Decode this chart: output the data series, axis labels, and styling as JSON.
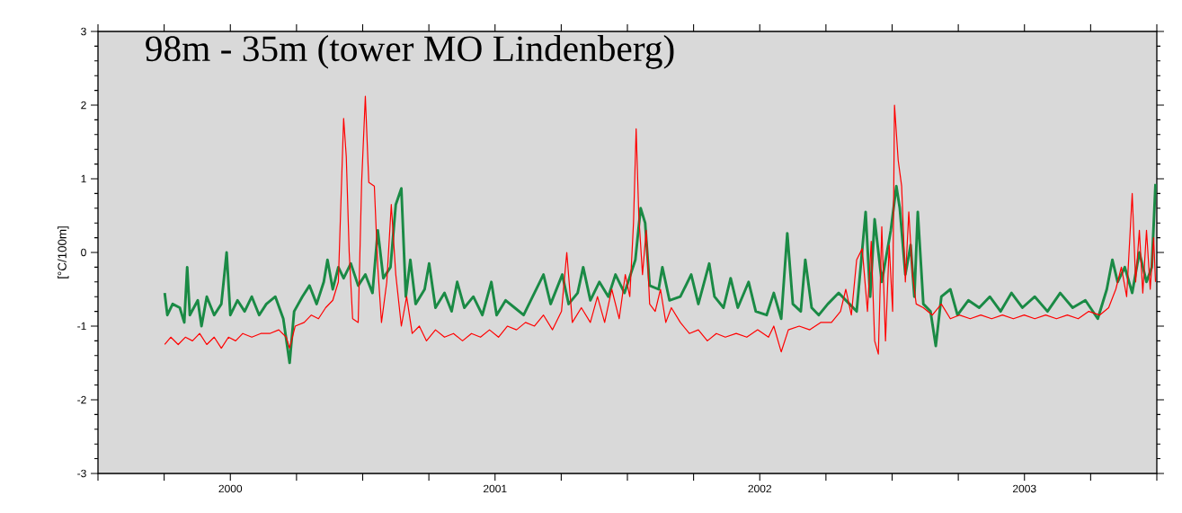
{
  "chart_data": {
    "type": "line",
    "title": "98m - 35m (tower MO Lindenberg)",
    "ylabel": "[°C/100m]",
    "xlim": [
      2000,
      2004
    ],
    "ylim": [
      -3,
      3
    ],
    "xticks": [
      {
        "value": 2000,
        "label": null
      },
      {
        "value": 2000.25,
        "label": null
      },
      {
        "value": 2000.5,
        "label": "2000"
      },
      {
        "value": 2000.75,
        "label": null
      },
      {
        "value": 2001,
        "label": null
      },
      {
        "value": 2001.25,
        "label": null
      },
      {
        "value": 2001.5,
        "label": "2001"
      },
      {
        "value": 2001.75,
        "label": null
      },
      {
        "value": 2002,
        "label": null
      },
      {
        "value": 2002.25,
        "label": null
      },
      {
        "value": 2002.5,
        "label": "2002"
      },
      {
        "value": 2002.75,
        "label": null
      },
      {
        "value": 2003,
        "label": null
      },
      {
        "value": 2003.25,
        "label": null
      },
      {
        "value": 2003.5,
        "label": "2003"
      },
      {
        "value": 2003.75,
        "label": null
      },
      {
        "value": 2004,
        "label": null
      }
    ],
    "yticks": [
      -3,
      -2,
      -1,
      0,
      1,
      2,
      3
    ],
    "line_style": "solid",
    "series": [
      {
        "color": "#1a8a45",
        "x": [
          2000.252,
          2000.262,
          2000.282,
          2000.309,
          2000.326,
          2000.337,
          2000.347,
          2000.377,
          2000.391,
          2000.411,
          2000.439,
          2000.466,
          2000.486,
          2000.5,
          2000.527,
          2000.554,
          2000.581,
          2000.609,
          2000.636,
          2000.67,
          2000.7,
          2000.724,
          2000.741,
          2000.772,
          2000.799,
          2000.826,
          2000.853,
          2000.867,
          2000.887,
          2000.908,
          2000.928,
          2000.955,
          2000.983,
          2001.01,
          2001.037,
          2001.057,
          2001.078,
          2001.105,
          2001.125,
          2001.146,
          2001.163,
          2001.18,
          2001.2,
          2001.234,
          2001.251,
          2001.275,
          2001.309,
          2001.336,
          2001.357,
          2001.384,
          2001.418,
          2001.452,
          2001.486,
          2001.506,
          2001.54,
          2001.574,
          2001.608,
          2001.642,
          2001.683,
          2001.71,
          2001.754,
          2001.778,
          2001.812,
          2001.833,
          2001.86,
          2001.894,
          2001.928,
          2001.955,
          2001.989,
          2002.03,
          2002.05,
          2002.067,
          2002.084,
          2002.118,
          2002.132,
          2002.159,
          2002.2,
          2002.241,
          2002.268,
          2002.309,
          2002.329,
          2002.363,
          2002.39,
          2002.417,
          2002.458,
          2002.485,
          2002.526,
          2002.553,
          2002.581,
          2002.604,
          2002.625,
          2002.655,
          2002.672,
          2002.696,
          2002.723,
          2002.757,
          2002.798,
          2002.839,
          2002.866,
          2002.9,
          2002.917,
          2002.934,
          2002.961,
          2002.995,
          2003.016,
          2003.029,
          2003.05,
          2003.07,
          2003.084,
          2003.097,
          2003.118,
          2003.145,
          2003.165,
          2003.186,
          2003.22,
          2003.247,
          2003.288,
          2003.329,
          2003.369,
          2003.41,
          2003.451,
          2003.492,
          2003.539,
          2003.587,
          2003.635,
          2003.682,
          2003.73,
          2003.777,
          2003.811,
          2003.832,
          2003.852,
          2003.879,
          2003.907,
          2003.934,
          2003.961,
          2003.981,
          2003.995
        ],
        "values": [
          -0.55,
          -0.85,
          -0.7,
          -0.75,
          -0.95,
          -0.2,
          -0.85,
          -0.65,
          -1.0,
          -0.6,
          -0.85,
          -0.7,
          0.0,
          -0.85,
          -0.65,
          -0.8,
          -0.6,
          -0.85,
          -0.7,
          -0.6,
          -0.9,
          -1.5,
          -0.8,
          -0.6,
          -0.45,
          -0.7,
          -0.4,
          -0.1,
          -0.5,
          -0.2,
          -0.35,
          -0.15,
          -0.45,
          -0.3,
          -0.55,
          0.3,
          -0.35,
          -0.2,
          0.65,
          0.87,
          -0.6,
          -0.1,
          -0.7,
          -0.5,
          -0.15,
          -0.75,
          -0.55,
          -0.8,
          -0.4,
          -0.75,
          -0.6,
          -0.85,
          -0.4,
          -0.85,
          -0.65,
          -0.75,
          -0.85,
          -0.6,
          -0.3,
          -0.7,
          -0.3,
          -0.7,
          -0.55,
          -0.2,
          -0.65,
          -0.4,
          -0.6,
          -0.3,
          -0.55,
          -0.1,
          0.6,
          0.4,
          -0.45,
          -0.5,
          -0.2,
          -0.65,
          -0.6,
          -0.3,
          -0.7,
          -0.15,
          -0.6,
          -0.75,
          -0.35,
          -0.75,
          -0.4,
          -0.8,
          -0.85,
          -0.55,
          -0.9,
          0.26,
          -0.7,
          -0.8,
          -0.1,
          -0.75,
          -0.85,
          -0.7,
          -0.55,
          -0.7,
          -0.8,
          0.55,
          -0.6,
          0.45,
          -0.4,
          0.3,
          0.9,
          0.6,
          -0.3,
          0.1,
          -0.6,
          0.55,
          -0.7,
          -0.8,
          -1.27,
          -0.6,
          -0.5,
          -0.85,
          -0.65,
          -0.75,
          -0.6,
          -0.8,
          -0.55,
          -0.75,
          -0.6,
          -0.8,
          -0.55,
          -0.75,
          -0.65,
          -0.9,
          -0.5,
          -0.1,
          -0.4,
          -0.2,
          -0.55,
          0.0,
          -0.4,
          -0.2,
          0.93
        ]
      },
      {
        "color": "#ff0000",
        "x": [
          2000.252,
          2000.275,
          2000.303,
          2000.33,
          2000.357,
          2000.384,
          2000.411,
          2000.439,
          2000.466,
          2000.493,
          2000.52,
          2000.547,
          2000.581,
          2000.615,
          2000.649,
          2000.683,
          2000.711,
          2000.724,
          2000.745,
          2000.779,
          2000.806,
          2000.833,
          2000.86,
          2000.887,
          2000.908,
          2000.928,
          2000.938,
          2000.949,
          2000.962,
          2000.983,
          2000.996,
          2001.01,
          2001.023,
          2001.044,
          2001.057,
          2001.071,
          2001.091,
          2001.108,
          2001.125,
          2001.146,
          2001.166,
          2001.187,
          2001.214,
          2001.241,
          2001.275,
          2001.309,
          2001.343,
          2001.377,
          2001.411,
          2001.445,
          2001.479,
          2001.513,
          2001.547,
          2001.581,
          2001.615,
          2001.649,
          2001.683,
          2001.717,
          2001.751,
          2001.771,
          2001.792,
          2001.826,
          2001.86,
          2001.887,
          2001.914,
          2001.941,
          2001.969,
          2001.992,
          2002.009,
          2002.023,
          2002.033,
          2002.043,
          2002.057,
          2002.071,
          2002.084,
          2002.105,
          2002.125,
          2002.145,
          2002.166,
          2002.2,
          2002.234,
          2002.268,
          2002.302,
          2002.336,
          2002.37,
          2002.411,
          2002.451,
          2002.492,
          2002.533,
          2002.553,
          2002.581,
          2002.608,
          2002.649,
          2002.689,
          2002.73,
          2002.771,
          2002.805,
          2002.825,
          2002.846,
          2002.866,
          2002.887,
          2002.907,
          2002.921,
          2002.934,
          2002.948,
          2002.961,
          2002.975,
          2002.989,
          2003.002,
          2003.009,
          2003.023,
          2003.036,
          2003.05,
          2003.063,
          2003.077,
          2003.091,
          2003.118,
          2003.152,
          2003.186,
          2003.22,
          2003.254,
          2003.295,
          2003.335,
          2003.376,
          2003.417,
          2003.458,
          2003.499,
          2003.539,
          2003.58,
          2003.621,
          2003.662,
          2003.703,
          2003.743,
          2003.784,
          2003.818,
          2003.845,
          2003.866,
          2003.886,
          2003.907,
          2003.92,
          2003.934,
          2003.947,
          2003.961,
          2003.975,
          2003.988,
          2003.995
        ],
        "values": [
          -1.25,
          -1.15,
          -1.25,
          -1.15,
          -1.2,
          -1.1,
          -1.25,
          -1.15,
          -1.3,
          -1.15,
          -1.2,
          -1.1,
          -1.15,
          -1.1,
          -1.1,
          -1.05,
          -1.15,
          -1.3,
          -1.0,
          -0.95,
          -0.85,
          -0.9,
          -0.75,
          -0.65,
          -0.4,
          1.82,
          1.3,
          0.0,
          -0.9,
          -0.95,
          0.95,
          2.12,
          0.95,
          0.9,
          -0.2,
          -0.95,
          -0.4,
          0.65,
          -0.3,
          -1.0,
          -0.6,
          -1.1,
          -1.0,
          -1.2,
          -1.05,
          -1.15,
          -1.1,
          -1.2,
          -1.1,
          -1.15,
          -1.05,
          -1.15,
          -1.0,
          -1.05,
          -0.95,
          -1.0,
          -0.85,
          -1.05,
          -0.8,
          0.0,
          -0.95,
          -0.75,
          -0.95,
          -0.6,
          -0.95,
          -0.5,
          -0.9,
          -0.3,
          -0.6,
          0.4,
          1.68,
          0.5,
          -0.3,
          0.3,
          -0.7,
          -0.8,
          -0.5,
          -0.95,
          -0.75,
          -0.95,
          -1.1,
          -1.05,
          -1.2,
          -1.1,
          -1.15,
          -1.1,
          -1.15,
          -1.05,
          -1.15,
          -1.0,
          -1.35,
          -1.05,
          -1.0,
          -1.05,
          -0.95,
          -0.95,
          -0.8,
          -0.5,
          -0.85,
          -0.1,
          0.05,
          -0.8,
          0.15,
          -1.2,
          -1.38,
          0.35,
          -1.2,
          0.1,
          -0.8,
          2.0,
          1.25,
          0.9,
          -0.4,
          0.55,
          -0.3,
          -0.7,
          -0.75,
          -0.85,
          -0.7,
          -0.9,
          -0.85,
          -0.9,
          -0.85,
          -0.9,
          -0.85,
          -0.9,
          -0.85,
          -0.9,
          -0.85,
          -0.9,
          -0.85,
          -0.9,
          -0.8,
          -0.85,
          -0.75,
          -0.5,
          -0.2,
          -0.6,
          0.8,
          -0.4,
          0.3,
          -0.55,
          0.3,
          -0.5,
          0.2,
          -0.4
        ]
      }
    ]
  }
}
